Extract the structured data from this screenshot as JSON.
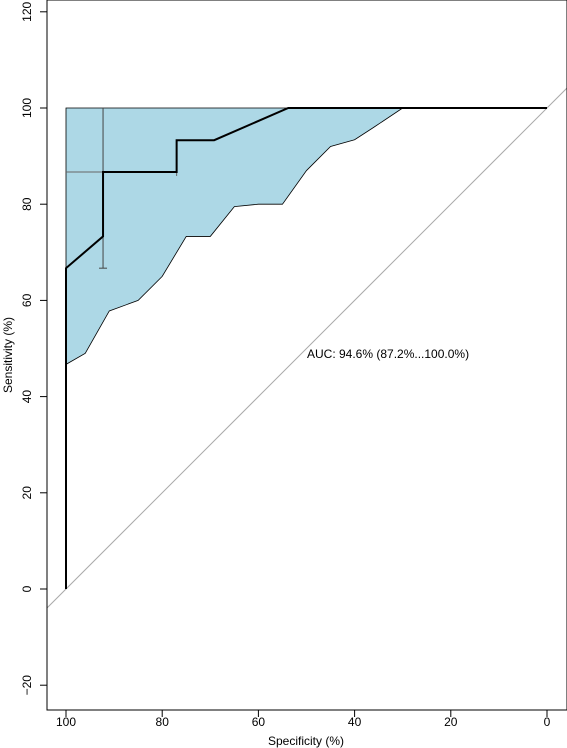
{
  "chart_data": {
    "type": "line",
    "title": "",
    "xlabel": "Specificity (%)",
    "ylabel": "Sensitivity (%)",
    "xlim": [
      100,
      0
    ],
    "ylim": [
      -20,
      120
    ],
    "x_reversed": true,
    "grid": false,
    "legend": "none",
    "x_ticks": [
      100,
      80,
      60,
      40,
      20,
      0
    ],
    "x_tick_labels": [
      "100",
      "80",
      "60",
      "40",
      "20",
      "0"
    ],
    "y_ticks": [
      -20,
      0,
      20,
      40,
      60,
      80,
      100,
      120
    ],
    "y_tick_labels": [
      "−20",
      "0",
      "20",
      "40",
      "60",
      "80",
      "100",
      "120"
    ],
    "annotation": "AUC: 94.6% (87.2%...100.0%)",
    "colors": {
      "ci_fill": "#add8e6",
      "roc_line": "#000000",
      "diagonal": "#aaaaaa"
    },
    "series": [
      {
        "type": "line",
        "points": [
          {
            "x": 100,
            "y": 0
          },
          {
            "x": 100,
            "y": 66.7
          },
          {
            "x": 92.3,
            "y": 73.3
          },
          {
            "x": 92.3,
            "y": 86.7
          },
          {
            "x": 77,
            "y": 86.7
          },
          {
            "x": 77,
            "y": 93.3
          },
          {
            "x": 69.2,
            "y": 93.3
          },
          {
            "x": 53.8,
            "y": 100
          },
          {
            "x": 0,
            "y": 100
          }
        ]
      }
    ],
    "ci_band": {
      "upper": [
        {
          "x": 100,
          "y": 100
        },
        {
          "x": 30,
          "y": 100
        }
      ],
      "lower": [
        {
          "x": 30,
          "y": 100
        },
        {
          "x": 36,
          "y": 96
        },
        {
          "x": 40,
          "y": 93.4
        },
        {
          "x": 45,
          "y": 92
        },
        {
          "x": 50,
          "y": 87
        },
        {
          "x": 55,
          "y": 80
        },
        {
          "x": 60,
          "y": 80
        },
        {
          "x": 65,
          "y": 79.5
        },
        {
          "x": 70,
          "y": 73.3
        },
        {
          "x": 75,
          "y": 73.3
        },
        {
          "x": 80,
          "y": 65
        },
        {
          "x": 85,
          "y": 60
        },
        {
          "x": 91,
          "y": 57.8
        },
        {
          "x": 96,
          "y": 49
        },
        {
          "x": 100,
          "y": 46.7
        }
      ]
    },
    "ci_sensitivity_bar": {
      "x": 92.3,
      "y_low": 66.7,
      "y_high": 100
    },
    "ci_specificity_bar": {
      "y": 86.7,
      "x_low": 77,
      "x_high": 100
    },
    "reference_line": {
      "from": {
        "x": 100,
        "y": 0
      },
      "to": {
        "x": 0,
        "y": 100
      }
    }
  }
}
